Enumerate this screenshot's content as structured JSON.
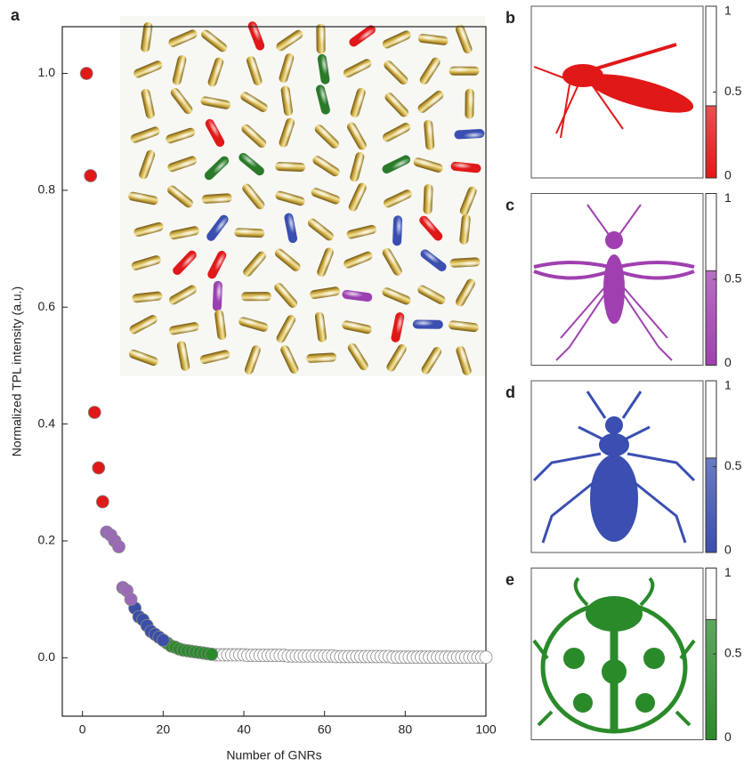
{
  "chart_data": [
    {
      "type": "scatter",
      "label": "a",
      "x_label": "Number of GNRs",
      "y_label": "Normalized TPL intensity (a.u.)",
      "xlim": [
        -5,
        100
      ],
      "xticks": [
        0,
        20,
        40,
        60,
        80,
        100
      ],
      "ylim": [
        -0.1,
        1.08
      ],
      "yticks": [
        {
          "value": 0,
          "label": "0.0"
        },
        0.2,
        0.4,
        0.6,
        0.8,
        {
          "value": 1,
          "label": "1.0"
        }
      ],
      "series": [
        {
          "color": "#e01818",
          "x": [
            1,
            2,
            3,
            4,
            5
          ],
          "values": [
            1.0,
            0.825,
            0.42,
            0.325,
            0.267
          ]
        },
        {
          "color": "#9a6ab8",
          "x": [
            6,
            7,
            8,
            9,
            10,
            11,
            12
          ],
          "values": [
            0.215,
            0.21,
            0.2,
            0.19,
            0.12,
            0.115,
            0.1
          ]
        },
        {
          "color": "#3a4fa8",
          "x": [
            13,
            14,
            15,
            16,
            17,
            18,
            19,
            20
          ],
          "values": [
            0.085,
            0.07,
            0.065,
            0.055,
            0.045,
            0.04,
            0.035,
            0.03
          ]
        },
        {
          "color": "#2a8a2a",
          "x": [
            21,
            22,
            23,
            24,
            25,
            26,
            27,
            28,
            29,
            30,
            31,
            32
          ],
          "values": [
            0.025,
            0.02,
            0.018,
            0.015,
            0.013,
            0.012,
            0.011,
            0.01,
            0.009,
            0.008,
            0.007,
            0.006
          ]
        },
        {
          "color": "#ffffff",
          "x": [
            33,
            34,
            35,
            36,
            37,
            38,
            39,
            40,
            41,
            42,
            43,
            44,
            45,
            46,
            47,
            48,
            49,
            50,
            51,
            52,
            53,
            54,
            55,
            56,
            57,
            58,
            59,
            60,
            61,
            62,
            63,
            64,
            65,
            66,
            67,
            68,
            69,
            70,
            71,
            72,
            73,
            74,
            75,
            76,
            77,
            78,
            79,
            80,
            81,
            82,
            83,
            84,
            85,
            86,
            87,
            88,
            89,
            90,
            91,
            92,
            93,
            94,
            95,
            96,
            97,
            98,
            99,
            100
          ],
          "values": [
            0.005,
            0.005,
            0.005,
            0.005,
            0.005,
            0.005,
            0.005,
            0.005,
            0.004,
            0.004,
            0.004,
            0.004,
            0.004,
            0.004,
            0.004,
            0.004,
            0.004,
            0.004,
            0.003,
            0.003,
            0.003,
            0.003,
            0.003,
            0.003,
            0.003,
            0.003,
            0.003,
            0.003,
            0.003,
            0.003,
            0.002,
            0.002,
            0.002,
            0.002,
            0.002,
            0.002,
            0.002,
            0.002,
            0.002,
            0.002,
            0.002,
            0.002,
            0.002,
            0.002,
            0.001,
            0.001,
            0.001,
            0.001,
            0.001,
            0.001,
            0.001,
            0.001,
            0.001,
            0.001,
            0.001,
            0.001,
            0.001,
            0.001,
            0.001,
            0.001,
            0.001,
            0.001,
            0.001,
            0.001,
            0.001,
            0.001,
            0.001,
            0.001
          ]
        }
      ]
    },
    {
      "type": "colorbar",
      "label": "b",
      "color": "#e01818",
      "threshold": 0.42,
      "ylim": [
        0,
        1
      ],
      "yticks": [
        0,
        0.5,
        1
      ]
    },
    {
      "type": "colorbar",
      "label": "c",
      "color": "#a040b0",
      "threshold": 0.55,
      "ylim": [
        0,
        1
      ],
      "yticks": [
        0,
        0.5,
        1
      ]
    },
    {
      "type": "colorbar",
      "label": "d",
      "color": "#3a4fb0",
      "threshold": 0.55,
      "ylim": [
        0,
        1
      ],
      "yticks": [
        0,
        0.5,
        1
      ]
    },
    {
      "type": "colorbar",
      "label": "e",
      "color": "#2a8a2a",
      "threshold": 0.7,
      "ylim": [
        0,
        1
      ],
      "yticks": [
        0,
        0.5,
        1
      ]
    }
  ]
}
